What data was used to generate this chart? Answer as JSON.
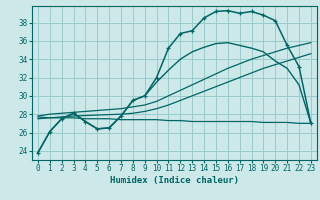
{
  "xlabel": "Humidex (Indice chaleur)",
  "bg_color": "#cce8e8",
  "grid_color": "#99cccc",
  "line_color": "#006666",
  "xlim": [
    -0.5,
    23.5
  ],
  "ylim": [
    23.0,
    39.8
  ],
  "yticks": [
    24,
    26,
    28,
    30,
    32,
    34,
    36,
    38
  ],
  "xticks": [
    0,
    1,
    2,
    3,
    4,
    5,
    6,
    7,
    8,
    9,
    10,
    11,
    12,
    13,
    14,
    15,
    16,
    17,
    18,
    19,
    20,
    21,
    22,
    23
  ],
  "hours": [
    0,
    1,
    2,
    3,
    4,
    5,
    6,
    7,
    8,
    9,
    10,
    11,
    12,
    13,
    14,
    15,
    16,
    17,
    18,
    19,
    20,
    21,
    22,
    23
  ],
  "humidex": [
    23.8,
    26.1,
    27.5,
    28.1,
    27.2,
    26.4,
    26.5,
    27.8,
    29.5,
    30.0,
    32.0,
    35.2,
    36.8,
    37.1,
    38.5,
    39.2,
    39.3,
    39.0,
    39.2,
    38.8,
    38.2,
    35.5,
    33.2,
    27.0
  ],
  "temp": [
    23.8,
    26.1,
    27.5,
    28.1,
    27.2,
    26.4,
    26.5,
    27.8,
    29.5,
    30.0,
    31.5,
    32.8,
    34.0,
    34.8,
    35.3,
    35.7,
    35.8,
    35.5,
    35.2,
    34.8,
    33.8,
    33.0,
    31.2,
    27.0
  ],
  "lin_high": [
    27.8,
    28.0,
    28.1,
    28.2,
    28.3,
    28.4,
    28.5,
    28.6,
    28.8,
    29.0,
    29.4,
    30.0,
    30.6,
    31.2,
    31.8,
    32.4,
    33.0,
    33.5,
    34.0,
    34.4,
    34.8,
    35.2,
    35.5,
    35.8
  ],
  "lin_low": [
    27.5,
    27.6,
    27.7,
    27.8,
    27.85,
    27.9,
    27.95,
    28.0,
    28.1,
    28.3,
    28.6,
    29.0,
    29.5,
    30.0,
    30.5,
    31.0,
    31.5,
    32.0,
    32.5,
    33.0,
    33.4,
    33.8,
    34.2,
    34.6
  ],
  "flat": [
    27.7,
    27.6,
    27.6,
    27.6,
    27.5,
    27.5,
    27.5,
    27.4,
    27.4,
    27.4,
    27.4,
    27.3,
    27.3,
    27.2,
    27.2,
    27.2,
    27.2,
    27.2,
    27.2,
    27.1,
    27.1,
    27.1,
    27.0,
    27.0
  ]
}
